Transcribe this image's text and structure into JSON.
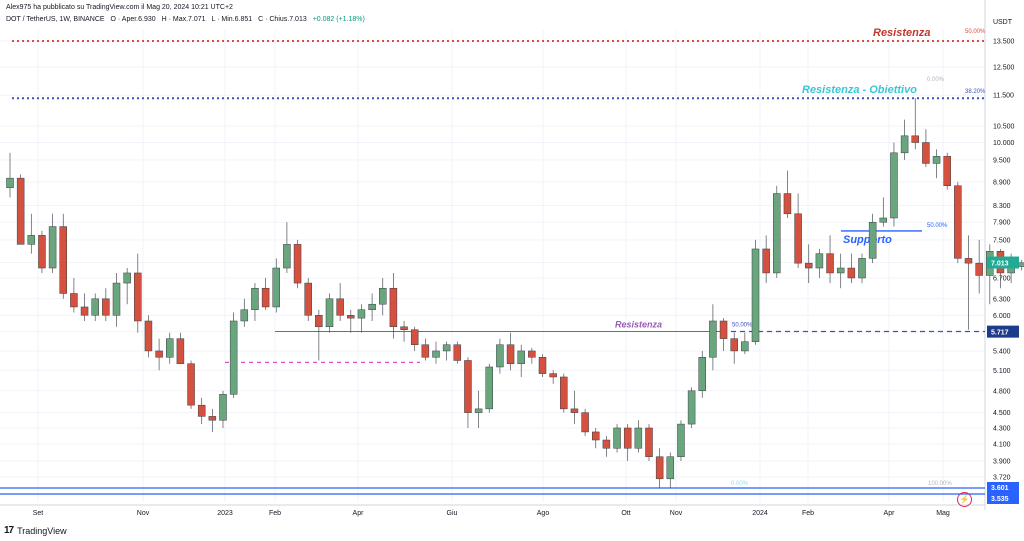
{
  "header": {
    "publisher": "Alex975 ha pubblicato su TradingView.com il Mag 20, 2024 10:21 UTC+2",
    "symbol": "DOT / TetherUS, 1W, BINANCE",
    "open": "O · Aper.6.930",
    "high": "H · Max.7.071",
    "low": "L · Min.6.851",
    "close": "C · Chius.7.013",
    "change": "+0.082 (+1.18%)"
  },
  "axis": {
    "currency": "USDT"
  },
  "footer": {
    "logo_text": "TradingView",
    "logo_mark": "17"
  },
  "colors": {
    "up": "#6aa67d",
    "down": "#d4503f",
    "accent_blue": "#2962ff",
    "resist_red": "#c0392b",
    "cyan": "#3bc6d6",
    "purple": "#9b59b6"
  },
  "chart_data": {
    "type": "candlestick",
    "price_scale": "log",
    "y_ticks": [
      "13.500",
      "12.500",
      "11.500",
      "10.500",
      "10.000",
      "9.500",
      "8.900",
      "8.300",
      "7.900",
      "7.500",
      "7.013",
      "6.700",
      "6.300",
      "6.000",
      "5.717",
      "5.400",
      "5.100",
      "4.800",
      "4.500",
      "4.300",
      "4.100",
      "3.900",
      "3.720",
      "3.601",
      "3.535"
    ],
    "x_labels": [
      "Set",
      "Nov",
      "2023",
      "Feb",
      "Apr",
      "Giu",
      "Ago",
      "Ott",
      "Nov",
      "2024",
      "Feb",
      "Apr",
      "Mag"
    ],
    "last_price": "7.013",
    "annotations": {
      "resist_top": "Resistenza",
      "resist_top_pct": "50.00%",
      "resist_obj": "Resistenza - Obiettivo",
      "resist_obj_pct": "38.20%",
      "fib_zero": "0.00%",
      "support": "Supporto",
      "support_pct": "50.00%",
      "resist_mid": "Resistenza",
      "resist_mid_pct": "50.00%",
      "low_pct_left": "0.00%",
      "low_pct_right": "100.00%",
      "label_5717": "5.717",
      "label_3601": "3.601",
      "label_3535": "3.535"
    },
    "candles": [
      {
        "o": 8.75,
        "h": 9.7,
        "l": 8.5,
        "c": 9.0
      },
      {
        "o": 9.0,
        "h": 9.1,
        "l": 7.4,
        "c": 7.4
      },
      {
        "o": 7.4,
        "h": 8.1,
        "l": 7.2,
        "c": 7.6
      },
      {
        "o": 7.6,
        "h": 7.7,
        "l": 6.8,
        "c": 6.9
      },
      {
        "o": 6.9,
        "h": 8.1,
        "l": 6.8,
        "c": 7.8
      },
      {
        "o": 7.8,
        "h": 8.1,
        "l": 6.3,
        "c": 6.4
      },
      {
        "o": 6.4,
        "h": 6.7,
        "l": 6.05,
        "c": 6.15
      },
      {
        "o": 6.15,
        "h": 6.4,
        "l": 5.9,
        "c": 6.0
      },
      {
        "o": 6.0,
        "h": 6.4,
        "l": 5.9,
        "c": 6.3
      },
      {
        "o": 6.3,
        "h": 6.5,
        "l": 5.9,
        "c": 6.0
      },
      {
        "o": 6.0,
        "h": 6.8,
        "l": 5.8,
        "c": 6.6
      },
      {
        "o": 6.6,
        "h": 6.9,
        "l": 6.2,
        "c": 6.8
      },
      {
        "o": 6.8,
        "h": 7.2,
        "l": 5.7,
        "c": 5.9
      },
      {
        "o": 5.9,
        "h": 6.0,
        "l": 5.3,
        "c": 5.4
      },
      {
        "o": 5.4,
        "h": 5.6,
        "l": 5.1,
        "c": 5.3
      },
      {
        "o": 5.3,
        "h": 5.7,
        "l": 5.2,
        "c": 5.6
      },
      {
        "o": 5.6,
        "h": 5.7,
        "l": 5.2,
        "c": 5.2
      },
      {
        "o": 5.2,
        "h": 5.25,
        "l": 4.55,
        "c": 4.6
      },
      {
        "o": 4.6,
        "h": 4.7,
        "l": 4.35,
        "c": 4.45
      },
      {
        "o": 4.45,
        "h": 4.55,
        "l": 4.25,
        "c": 4.4
      },
      {
        "o": 4.4,
        "h": 4.8,
        "l": 4.3,
        "c": 4.75
      },
      {
        "o": 4.75,
        "h": 6.05,
        "l": 4.7,
        "c": 5.9
      },
      {
        "o": 5.9,
        "h": 6.3,
        "l": 5.8,
        "c": 6.1
      },
      {
        "o": 6.1,
        "h": 6.6,
        "l": 5.9,
        "c": 6.5
      },
      {
        "o": 6.5,
        "h": 6.7,
        "l": 6.1,
        "c": 6.15
      },
      {
        "o": 6.15,
        "h": 7.1,
        "l": 6.05,
        "c": 6.9
      },
      {
        "o": 6.9,
        "h": 7.9,
        "l": 6.8,
        "c": 7.4
      },
      {
        "o": 7.4,
        "h": 7.5,
        "l": 6.5,
        "c": 6.6
      },
      {
        "o": 6.6,
        "h": 6.7,
        "l": 5.9,
        "c": 6.0
      },
      {
        "o": 6.0,
        "h": 6.1,
        "l": 5.25,
        "c": 5.8
      },
      {
        "o": 5.8,
        "h": 6.4,
        "l": 5.7,
        "c": 6.3
      },
      {
        "o": 6.3,
        "h": 6.6,
        "l": 5.9,
        "c": 6.0
      },
      {
        "o": 6.0,
        "h": 6.1,
        "l": 5.7,
        "c": 5.95
      },
      {
        "o": 5.95,
        "h": 6.2,
        "l": 5.7,
        "c": 6.1
      },
      {
        "o": 6.1,
        "h": 6.4,
        "l": 5.9,
        "c": 6.2
      },
      {
        "o": 6.2,
        "h": 6.7,
        "l": 6.0,
        "c": 6.5
      },
      {
        "o": 6.5,
        "h": 6.8,
        "l": 5.6,
        "c": 5.8
      },
      {
        "o": 5.8,
        "h": 5.9,
        "l": 5.55,
        "c": 5.75
      },
      {
        "o": 5.75,
        "h": 5.8,
        "l": 5.4,
        "c": 5.5
      },
      {
        "o": 5.5,
        "h": 5.6,
        "l": 5.25,
        "c": 5.3
      },
      {
        "o": 5.3,
        "h": 5.55,
        "l": 5.2,
        "c": 5.4
      },
      {
        "o": 5.4,
        "h": 5.55,
        "l": 5.25,
        "c": 5.5
      },
      {
        "o": 5.5,
        "h": 5.55,
        "l": 5.2,
        "c": 5.25
      },
      {
        "o": 5.25,
        "h": 5.3,
        "l": 4.3,
        "c": 4.5
      },
      {
        "o": 4.5,
        "h": 4.8,
        "l": 4.3,
        "c": 4.55
      },
      {
        "o": 4.55,
        "h": 5.2,
        "l": 4.5,
        "c": 5.15
      },
      {
        "o": 5.15,
        "h": 5.6,
        "l": 5.05,
        "c": 5.5
      },
      {
        "o": 5.5,
        "h": 5.7,
        "l": 5.1,
        "c": 5.2
      },
      {
        "o": 5.2,
        "h": 5.5,
        "l": 5.0,
        "c": 5.4
      },
      {
        "o": 5.4,
        "h": 5.45,
        "l": 5.2,
        "c": 5.3
      },
      {
        "o": 5.3,
        "h": 5.35,
        "l": 5.0,
        "c": 5.05
      },
      {
        "o": 5.05,
        "h": 5.1,
        "l": 4.9,
        "c": 5.0
      },
      {
        "o": 5.0,
        "h": 5.05,
        "l": 4.5,
        "c": 4.55
      },
      {
        "o": 4.55,
        "h": 4.8,
        "l": 4.35,
        "c": 4.5
      },
      {
        "o": 4.5,
        "h": 4.55,
        "l": 4.2,
        "c": 4.25
      },
      {
        "o": 4.25,
        "h": 4.3,
        "l": 4.05,
        "c": 4.15
      },
      {
        "o": 4.15,
        "h": 4.2,
        "l": 3.95,
        "c": 4.05
      },
      {
        "o": 4.05,
        "h": 4.35,
        "l": 4.0,
        "c": 4.3
      },
      {
        "o": 4.3,
        "h": 4.35,
        "l": 3.9,
        "c": 4.05
      },
      {
        "o": 4.05,
        "h": 4.4,
        "l": 4.0,
        "c": 4.3
      },
      {
        "o": 4.3,
        "h": 4.35,
        "l": 3.9,
        "c": 3.95
      },
      {
        "o": 3.95,
        "h": 4.05,
        "l": 3.6,
        "c": 3.7
      },
      {
        "o": 3.7,
        "h": 4.0,
        "l": 3.6,
        "c": 3.95
      },
      {
        "o": 3.95,
        "h": 4.4,
        "l": 3.9,
        "c": 4.35
      },
      {
        "o": 4.35,
        "h": 4.85,
        "l": 4.3,
        "c": 4.8
      },
      {
        "o": 4.8,
        "h": 5.4,
        "l": 4.7,
        "c": 5.3
      },
      {
        "o": 5.3,
        "h": 6.2,
        "l": 5.1,
        "c": 5.9
      },
      {
        "o": 5.9,
        "h": 5.95,
        "l": 5.4,
        "c": 5.6
      },
      {
        "o": 5.6,
        "h": 5.7,
        "l": 5.2,
        "c": 5.4
      },
      {
        "o": 5.4,
        "h": 5.7,
        "l": 5.35,
        "c": 5.55
      },
      {
        "o": 5.55,
        "h": 7.5,
        "l": 5.5,
        "c": 7.3
      },
      {
        "o": 7.3,
        "h": 7.6,
        "l": 6.6,
        "c": 6.8
      },
      {
        "o": 6.8,
        "h": 8.8,
        "l": 6.7,
        "c": 8.6
      },
      {
        "o": 8.6,
        "h": 9.2,
        "l": 8.0,
        "c": 8.1
      },
      {
        "o": 8.1,
        "h": 8.6,
        "l": 6.9,
        "c": 7.0
      },
      {
        "o": 7.0,
        "h": 7.4,
        "l": 6.6,
        "c": 6.9
      },
      {
        "o": 6.9,
        "h": 7.3,
        "l": 6.7,
        "c": 7.2
      },
      {
        "o": 7.2,
        "h": 7.6,
        "l": 6.6,
        "c": 6.8
      },
      {
        "o": 6.8,
        "h": 7.2,
        "l": 6.5,
        "c": 6.9
      },
      {
        "o": 6.9,
        "h": 7.2,
        "l": 6.6,
        "c": 6.7
      },
      {
        "o": 6.7,
        "h": 7.2,
        "l": 6.6,
        "c": 7.1
      },
      {
        "o": 7.1,
        "h": 8.1,
        "l": 7.0,
        "c": 7.9
      },
      {
        "o": 7.9,
        "h": 8.5,
        "l": 7.8,
        "c": 8.0
      },
      {
        "o": 8.0,
        "h": 10.0,
        "l": 7.8,
        "c": 9.7
      },
      {
        "o": 9.7,
        "h": 10.7,
        "l": 9.5,
        "c": 10.2
      },
      {
        "o": 10.2,
        "h": 11.4,
        "l": 9.8,
        "c": 10.0
      },
      {
        "o": 10.0,
        "h": 10.4,
        "l": 9.3,
        "c": 9.4
      },
      {
        "o": 9.4,
        "h": 9.8,
        "l": 9.0,
        "c": 9.6
      },
      {
        "o": 9.6,
        "h": 9.7,
        "l": 8.7,
        "c": 8.8
      },
      {
        "o": 8.8,
        "h": 8.9,
        "l": 7.0,
        "c": 7.1
      },
      {
        "o": 7.1,
        "h": 7.6,
        "l": 5.75,
        "c": 7.0
      },
      {
        "o": 7.0,
        "h": 7.5,
        "l": 6.4,
        "c": 6.75
      },
      {
        "o": 6.75,
        "h": 7.4,
        "l": 6.2,
        "c": 7.25
      },
      {
        "o": 7.25,
        "h": 7.3,
        "l": 6.5,
        "c": 6.8
      },
      {
        "o": 6.8,
        "h": 7.2,
        "l": 6.6,
        "c": 6.93
      },
      {
        "o": 6.93,
        "h": 7.07,
        "l": 6.85,
        "c": 7.01
      }
    ]
  }
}
